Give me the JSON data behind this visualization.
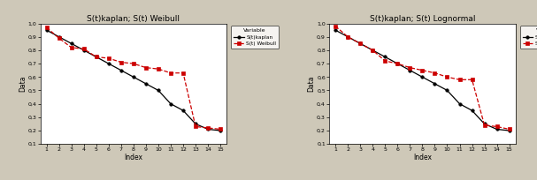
{
  "kaplan_x": [
    1,
    2,
    3,
    4,
    5,
    6,
    7,
    8,
    9,
    10,
    11,
    12,
    13,
    14,
    15
  ],
  "kaplan_y": [
    0.95,
    0.9,
    0.85,
    0.8,
    0.75,
    0.7,
    0.65,
    0.6,
    0.55,
    0.5,
    0.4,
    0.35,
    0.25,
    0.21,
    0.2
  ],
  "weibull_y": [
    0.97,
    0.89,
    0.82,
    0.81,
    0.75,
    0.74,
    0.71,
    0.7,
    0.67,
    0.66,
    0.63,
    0.63,
    0.23,
    0.22,
    0.21
  ],
  "lognormal_y": [
    0.98,
    0.9,
    0.85,
    0.8,
    0.72,
    0.7,
    0.67,
    0.65,
    0.63,
    0.6,
    0.58,
    0.58,
    0.24,
    0.23,
    0.21
  ],
  "title1": "S(t)kaplan; S(t) Weibull",
  "title2": "S(t)kaplan; S(t) Lognormal",
  "xlabel": "Index",
  "ylabel": "Data",
  "legend_title": "Variable",
  "legend1_label1": "S(t)kaplan",
  "legend1_label2": "S(t) Weibull",
  "legend2_label1": "S(t)kaplan",
  "legend2_label2": "S(t)Lognormal",
  "kaplan_color": "#000000",
  "red_color": "#cc0000",
  "bg_color": "#cec8b8",
  "plot_bg_color": "#ffffff",
  "ylim": [
    0.1,
    1.0
  ],
  "xlim": [
    0.5,
    15.5
  ],
  "yticks": [
    0.1,
    0.2,
    0.3,
    0.4,
    0.5,
    0.6,
    0.7,
    0.8,
    0.9,
    1.0
  ],
  "xticks": [
    1,
    2,
    3,
    4,
    5,
    6,
    7,
    8,
    9,
    10,
    11,
    12,
    13,
    14,
    15
  ]
}
